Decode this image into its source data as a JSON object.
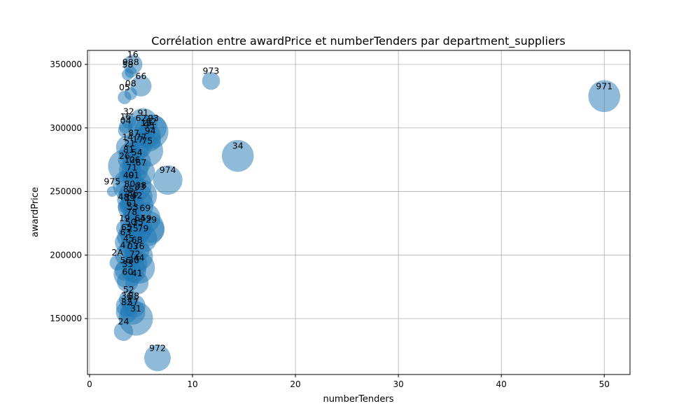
{
  "chart_data": {
    "type": "scatter",
    "title": "Corrélation entre awardPrice et numberTenders par department_suppliers",
    "xlabel": "numberTenders",
    "ylabel": "awardPrice",
    "xlim": [
      -0.2,
      52.5
    ],
    "ylim": [
      106000,
      361000
    ],
    "xticks": [
      0,
      10,
      20,
      30,
      40,
      50
    ],
    "yticks": [
      150000,
      200000,
      250000,
      300000,
      350000
    ],
    "grid": true,
    "point_color": "#1f77b4",
    "point_alpha": 0.5,
    "points": [
      {
        "label": "16",
        "x": 4.2,
        "y": 350000,
        "size": 1.5
      },
      {
        "label": "988",
        "x": 4.0,
        "y": 344000,
        "size": 0.3
      },
      {
        "label": "58",
        "x": 3.7,
        "y": 342000,
        "size": 0.3
      },
      {
        "label": "973",
        "x": 11.8,
        "y": 337000,
        "size": 1.2
      },
      {
        "label": "66",
        "x": 5.0,
        "y": 333000,
        "size": 1.9
      },
      {
        "label": "08",
        "x": 4.0,
        "y": 327000,
        "size": 0.4
      },
      {
        "label": "05",
        "x": 3.4,
        "y": 324000,
        "size": 0.5
      },
      {
        "label": "971",
        "x": 50.0,
        "y": 325000,
        "size": 5.5
      },
      {
        "label": "91",
        "x": 5.2,
        "y": 304000,
        "size": 4.5
      },
      {
        "label": "32",
        "x": 3.8,
        "y": 305000,
        "size": 0.6
      },
      {
        "label": "62",
        "x": 5.0,
        "y": 300000,
        "size": 3.5
      },
      {
        "label": "93",
        "x": 6.2,
        "y": 300000,
        "size": 3.5
      },
      {
        "label": "16b",
        "x": 3.5,
        "y": 301000,
        "size": 0.5
      },
      {
        "label": "04",
        "x": 3.5,
        "y": 298000,
        "size": 0.7
      },
      {
        "label": "15",
        "x": 5.5,
        "y": 296000,
        "size": 1.0
      },
      {
        "label": "92",
        "x": 6.0,
        "y": 297000,
        "size": 6.5
      },
      {
        "label": "95",
        "x": 5.8,
        "y": 294000,
        "size": 2.5
      },
      {
        "label": "94",
        "x": 5.9,
        "y": 290000,
        "size": 2.0
      },
      {
        "label": "34",
        "x": 14.4,
        "y": 278000,
        "size": 5.5
      },
      {
        "label": "87",
        "x": 4.3,
        "y": 288000,
        "size": 1.2
      },
      {
        "label": "77",
        "x": 5.0,
        "y": 285000,
        "size": 2.0
      },
      {
        "label": "14",
        "x": 3.7,
        "y": 285000,
        "size": 2.5
      },
      {
        "label": "17",
        "x": 4.7,
        "y": 283000,
        "size": 2.0
      },
      {
        "label": "75",
        "x": 5.6,
        "y": 282000,
        "size": 5.5
      },
      {
        "label": "21",
        "x": 3.9,
        "y": 280000,
        "size": 2.0
      },
      {
        "label": "81",
        "x": 3.8,
        "y": 275000,
        "size": 2.0
      },
      {
        "label": "54",
        "x": 4.6,
        "y": 273000,
        "size": 4.0
      },
      {
        "label": "26",
        "x": 3.4,
        "y": 270000,
        "size": 6.0
      },
      {
        "label": "12",
        "x": 3.9,
        "y": 267000,
        "size": 2.0
      },
      {
        "label": "06",
        "x": 4.4,
        "y": 267000,
        "size": 3.5
      },
      {
        "label": "67",
        "x": 5.0,
        "y": 265000,
        "size": 4.0
      },
      {
        "label": "974",
        "x": 7.6,
        "y": 259000,
        "size": 4.5
      },
      {
        "label": "71",
        "x": 4.1,
        "y": 261000,
        "size": 1.5
      },
      {
        "label": "975",
        "x": 2.2,
        "y": 250000,
        "size": 0.2
      },
      {
        "label": "49",
        "x": 3.8,
        "y": 255000,
        "size": 5.5
      },
      {
        "label": "01",
        "x": 4.3,
        "y": 255000,
        "size": 7.0
      },
      {
        "label": "83",
        "x": 4.9,
        "y": 246000,
        "size": 3.0
      },
      {
        "label": "80",
        "x": 3.9,
        "y": 248000,
        "size": 2.0
      },
      {
        "label": "38",
        "x": 5.0,
        "y": 247000,
        "size": 5.5
      },
      {
        "label": "85",
        "x": 3.8,
        "y": 244000,
        "size": 2.5
      },
      {
        "label": "86",
        "x": 4.2,
        "y": 241000,
        "size": 2.0
      },
      {
        "label": "48",
        "x": 3.3,
        "y": 238000,
        "size": 0.3
      },
      {
        "label": "39",
        "x": 3.9,
        "y": 237000,
        "size": 2.5
      },
      {
        "label": "42",
        "x": 4.6,
        "y": 239000,
        "size": 6.0
      },
      {
        "label": "61",
        "x": 4.1,
        "y": 233000,
        "size": 1.2
      },
      {
        "label": "53",
        "x": 4.2,
        "y": 230000,
        "size": 1.5
      },
      {
        "label": "69",
        "x": 5.4,
        "y": 229000,
        "size": 5.0
      },
      {
        "label": "78",
        "x": 4.1,
        "y": 226000,
        "size": 2.5
      },
      {
        "label": "64",
        "x": 4.9,
        "y": 221000,
        "size": 3.0
      },
      {
        "label": "59",
        "x": 5.5,
        "y": 221000,
        "size": 7.5
      },
      {
        "label": "29",
        "x": 6.0,
        "y": 220000,
        "size": 3.5
      },
      {
        "label": "19",
        "x": 3.4,
        "y": 221000,
        "size": 1.0
      },
      {
        "label": "50",
        "x": 4.0,
        "y": 218000,
        "size": 2.5
      },
      {
        "label": "35",
        "x": 4.7,
        "y": 218000,
        "size": 3.0
      },
      {
        "label": "65",
        "x": 3.6,
        "y": 214000,
        "size": 1.5
      },
      {
        "label": "25",
        "x": 4.2,
        "y": 213000,
        "size": 2.5
      },
      {
        "label": "79",
        "x": 5.2,
        "y": 213000,
        "size": 4.0
      },
      {
        "label": "63",
        "x": 3.5,
        "y": 210000,
        "size": 2.0
      },
      {
        "label": "45",
        "x": 3.8,
        "y": 205000,
        "size": 1.5
      },
      {
        "label": "68",
        "x": 4.6,
        "y": 204000,
        "size": 3.0
      },
      {
        "label": "47",
        "x": 3.5,
        "y": 200000,
        "size": 2.0
      },
      {
        "label": "03",
        "x": 4.2,
        "y": 199000,
        "size": 1.5
      },
      {
        "label": "76",
        "x": 4.8,
        "y": 199000,
        "size": 4.0
      },
      {
        "label": "2A",
        "x": 2.7,
        "y": 194000,
        "size": 0.8
      },
      {
        "label": "72",
        "x": 4.4,
        "y": 193000,
        "size": 3.0
      },
      {
        "label": "44",
        "x": 4.8,
        "y": 190000,
        "size": 5.5
      },
      {
        "label": "56",
        "x": 3.5,
        "y": 188000,
        "size": 2.0
      },
      {
        "label": "30",
        "x": 4.3,
        "y": 188000,
        "size": 3.0
      },
      {
        "label": "33",
        "x": 3.7,
        "y": 185000,
        "size": 4.0
      },
      {
        "label": "60",
        "x": 3.7,
        "y": 179000,
        "size": 2.0
      },
      {
        "label": "41",
        "x": 4.6,
        "y": 178000,
        "size": 2.5
      },
      {
        "label": "52",
        "x": 3.8,
        "y": 165000,
        "size": 1.5
      },
      {
        "label": "36",
        "x": 3.6,
        "y": 160000,
        "size": 2.0
      },
      {
        "label": "88",
        "x": 4.3,
        "y": 160000,
        "size": 2.5
      },
      {
        "label": "82",
        "x": 3.6,
        "y": 155000,
        "size": 2.0
      },
      {
        "label": "57",
        "x": 4.2,
        "y": 155000,
        "size": 3.0
      },
      {
        "label": "24",
        "x": 3.3,
        "y": 140000,
        "size": 1.5
      },
      {
        "label": "972",
        "x": 6.6,
        "y": 119000,
        "size": 3.5
      },
      {
        "label": "31",
        "x": 4.5,
        "y": 150000,
        "size": 6.5
      }
    ]
  }
}
